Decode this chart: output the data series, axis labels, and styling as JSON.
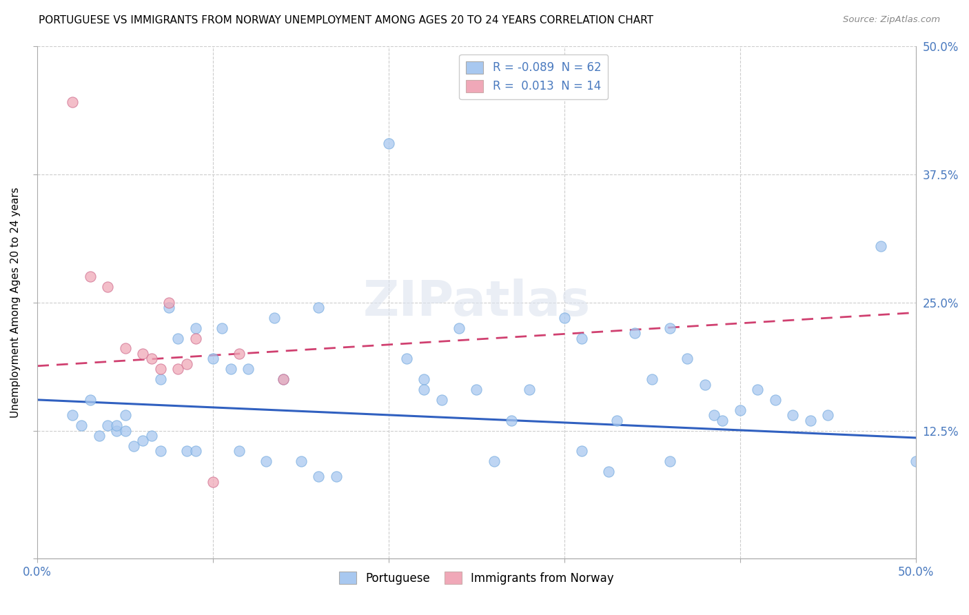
{
  "title": "PORTUGUESE VS IMMIGRANTS FROM NORWAY UNEMPLOYMENT AMONG AGES 20 TO 24 YEARS CORRELATION CHART",
  "source": "Source: ZipAtlas.com",
  "ylabel": "Unemployment Among Ages 20 to 24 years",
  "xlim": [
    0.0,
    0.5
  ],
  "ylim": [
    0.0,
    0.5
  ],
  "watermark": "ZIPatlas",
  "portuguese_R": "-0.089",
  "portuguese_N": "62",
  "norway_R": "0.013",
  "norway_N": "14",
  "portuguese_color": "#a8c8f0",
  "norway_color": "#f0a8b8",
  "trend_portuguese_color": "#3060c0",
  "trend_norway_color": "#d04070",
  "portuguese_trend_start": 0.155,
  "portuguese_trend_end": 0.118,
  "norway_trend_start": 0.188,
  "norway_trend_end": 0.24,
  "portuguese_x": [
    0.02,
    0.025,
    0.03,
    0.035,
    0.04,
    0.045,
    0.045,
    0.05,
    0.05,
    0.055,
    0.06,
    0.065,
    0.07,
    0.075,
    0.08,
    0.085,
    0.09,
    0.09,
    0.1,
    0.105,
    0.11,
    0.115,
    0.12,
    0.13,
    0.135,
    0.14,
    0.15,
    0.16,
    0.17,
    0.2,
    0.21,
    0.22,
    0.23,
    0.24,
    0.25,
    0.26,
    0.27,
    0.28,
    0.3,
    0.31,
    0.325,
    0.33,
    0.34,
    0.35,
    0.36,
    0.37,
    0.38,
    0.385,
    0.39,
    0.4,
    0.41,
    0.42,
    0.43,
    0.44,
    0.45,
    0.48,
    0.5,
    0.07,
    0.16,
    0.22,
    0.31,
    0.36
  ],
  "portuguese_y": [
    0.14,
    0.13,
    0.155,
    0.12,
    0.13,
    0.125,
    0.13,
    0.125,
    0.14,
    0.11,
    0.115,
    0.12,
    0.105,
    0.245,
    0.215,
    0.105,
    0.105,
    0.225,
    0.195,
    0.225,
    0.185,
    0.105,
    0.185,
    0.095,
    0.235,
    0.175,
    0.095,
    0.08,
    0.08,
    0.405,
    0.195,
    0.175,
    0.155,
    0.225,
    0.165,
    0.095,
    0.135,
    0.165,
    0.235,
    0.215,
    0.085,
    0.135,
    0.22,
    0.175,
    0.225,
    0.195,
    0.17,
    0.14,
    0.135,
    0.145,
    0.165,
    0.155,
    0.14,
    0.135,
    0.14,
    0.305,
    0.095,
    0.175,
    0.245,
    0.165,
    0.105,
    0.095
  ],
  "norway_x": [
    0.02,
    0.03,
    0.04,
    0.05,
    0.06,
    0.065,
    0.07,
    0.075,
    0.08,
    0.085,
    0.09,
    0.1,
    0.115,
    0.14
  ],
  "norway_y": [
    0.445,
    0.275,
    0.265,
    0.205,
    0.2,
    0.195,
    0.185,
    0.25,
    0.185,
    0.19,
    0.215,
    0.075,
    0.2,
    0.175
  ]
}
